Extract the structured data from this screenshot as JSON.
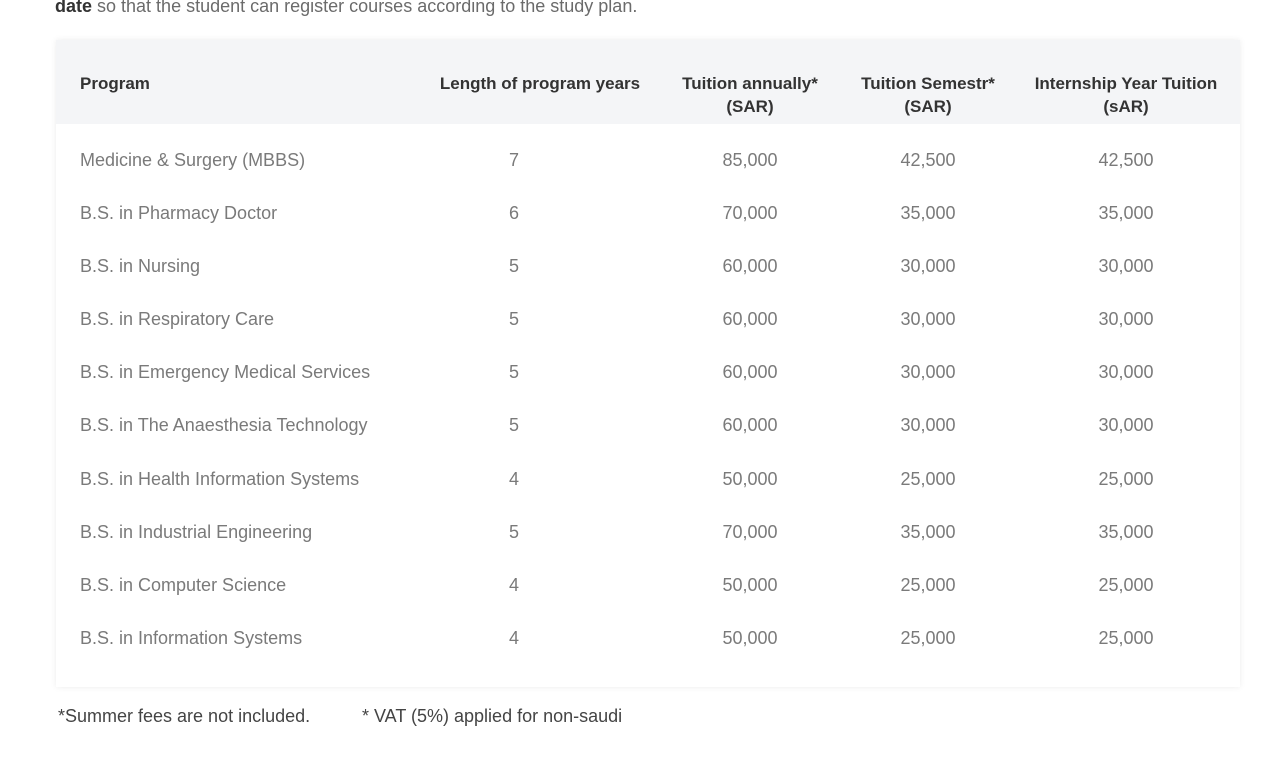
{
  "intro": {
    "bold": "date",
    "text": " so that the student can register courses according to the study plan."
  },
  "table": {
    "headers": {
      "program": "Program",
      "length": "Length of program years",
      "annual_line1": "Tuition annually*",
      "annual_line2": "(SAR)",
      "semester_line1": "Tuition Semestr*",
      "semester_line2": "(SAR)",
      "internship_line1": "Internship Year Tuition",
      "internship_line2": "(sAR)"
    },
    "rows": [
      {
        "program": "Medicine & Surgery (MBBS)",
        "years": "7",
        "annual": "85,000",
        "semester": "42,500",
        "internship": "42,500"
      },
      {
        "program": "B.S. in Pharmacy Doctor",
        "years": "6",
        "annual": "70,000",
        "semester": "35,000",
        "internship": "35,000"
      },
      {
        "program": "B.S. in Nursing",
        "years": "5",
        "annual": "60,000",
        "semester": "30,000",
        "internship": "30,000"
      },
      {
        "program": "B.S. in Respiratory Care",
        "years": "5",
        "annual": "60,000",
        "semester": "30,000",
        "internship": "30,000"
      },
      {
        "program": "B.S. in Emergency Medical Services",
        "years": "5",
        "annual": "60,000",
        "semester": "30,000",
        "internship": "30,000"
      },
      {
        "program": "B.S. in The Anaesthesia Technology",
        "years": "5",
        "annual": "60,000",
        "semester": "30,000",
        "internship": "30,000"
      },
      {
        "program": "B.S. in Health Information Systems",
        "years": "4",
        "annual": "50,000",
        "semester": "25,000",
        "internship": "25,000"
      },
      {
        "program": "B.S. in Industrial Engineering",
        "years": "5",
        "annual": "70,000",
        "semester": "35,000",
        "internship": "35,000"
      },
      {
        "program": "B.S. in Computer Science",
        "years": "4",
        "annual": "50,000",
        "semester": "25,000",
        "internship": "25,000"
      },
      {
        "program": "B.S. in Information Systems",
        "years": "4",
        "annual": "50,000",
        "semester": "25,000",
        "internship": "25,000"
      }
    ]
  },
  "footer": {
    "note1": "*Summer fees are not included.",
    "note2": "* VAT (5%) applied for non-saudi"
  }
}
